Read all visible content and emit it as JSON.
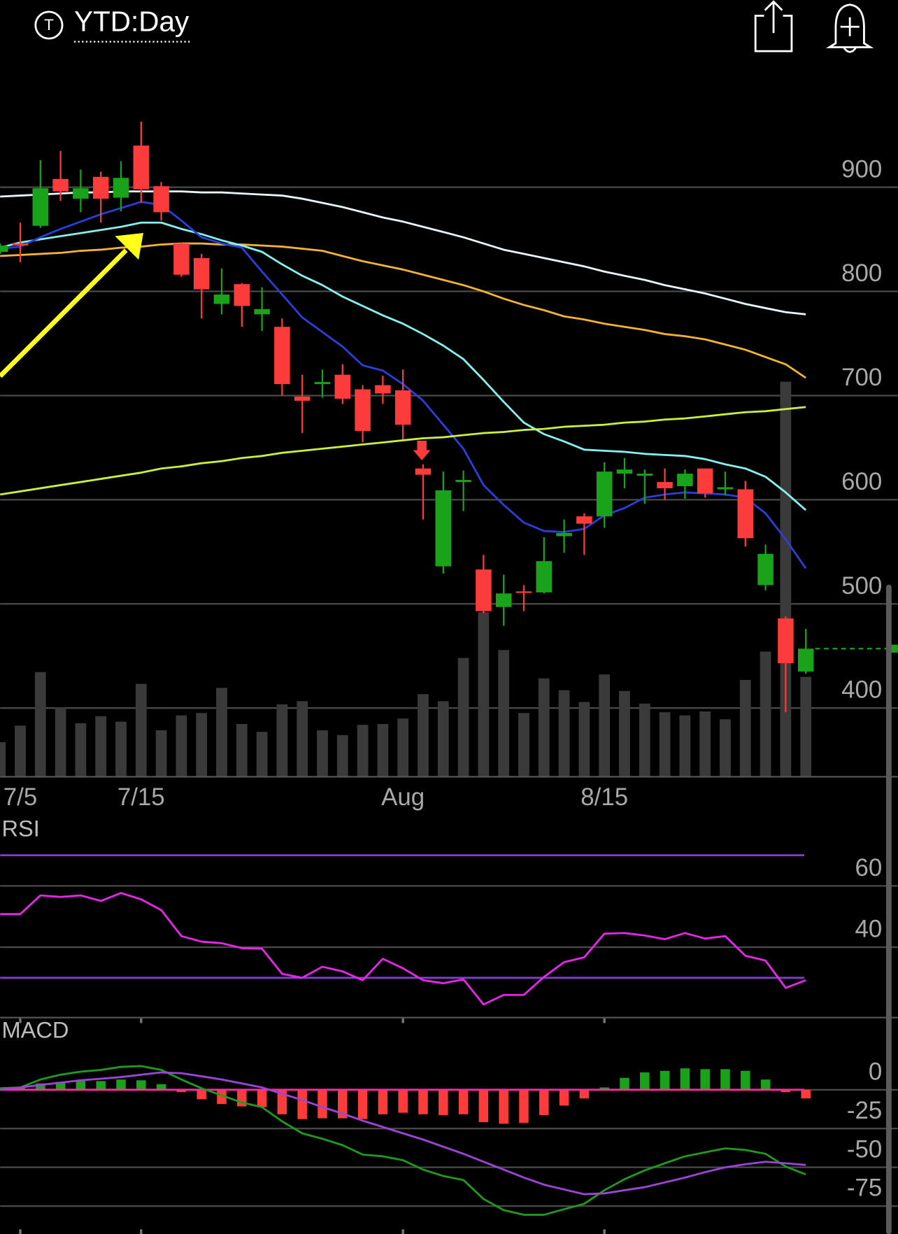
{
  "header": {
    "icon": "T",
    "title": "YTD:Day"
  },
  "chart_data": [
    {
      "type": "candlestick",
      "categories": [
        null,
        "7/5",
        null,
        null,
        null,
        null,
        null,
        "7/15",
        null,
        null,
        null,
        null,
        null,
        null,
        null,
        null,
        null,
        null,
        null,
        null,
        "Aug",
        null,
        null,
        null,
        null,
        null,
        null,
        null,
        null,
        null,
        "8/15",
        null,
        null,
        null,
        null,
        null,
        null,
        null,
        null,
        null,
        null
      ],
      "open": [
        838,
        846,
        863,
        908,
        889,
        910,
        890,
        940,
        901,
        846,
        832,
        788,
        807,
        778,
        766,
        699,
        711,
        720,
        706,
        710,
        705,
        630,
        536,
        617,
        533,
        497,
        512,
        511,
        565,
        584,
        584,
        625,
        623,
        617,
        613,
        630,
        610,
        610,
        518,
        486,
        435
      ],
      "high": [
        846,
        866,
        926,
        935,
        917,
        915,
        925,
        963,
        905,
        847,
        836,
        822,
        808,
        804,
        774,
        720,
        725,
        730,
        710,
        719,
        725,
        634,
        627,
        628,
        547,
        528,
        518,
        564,
        581,
        587,
        636,
        640,
        629,
        630,
        629,
        630,
        627,
        618,
        557,
        488,
        476
      ],
      "low": [
        836,
        828,
        861,
        887,
        876,
        866,
        877,
        885,
        868,
        814,
        774,
        778,
        766,
        762,
        700,
        664,
        698,
        692,
        655,
        692,
        658,
        581,
        529,
        589,
        491,
        479,
        493,
        510,
        549,
        547,
        573,
        611,
        596,
        600,
        601,
        602,
        604,
        555,
        513,
        396,
        433
      ],
      "close": [
        844,
        844,
        899,
        896,
        899,
        889,
        909,
        898,
        876,
        816,
        802,
        797,
        786,
        783,
        711,
        695,
        713,
        697,
        666,
        702,
        672,
        624,
        609,
        619,
        493,
        510,
        511,
        541,
        568,
        577,
        627,
        629,
        625,
        611,
        625,
        606,
        612,
        563,
        548,
        443,
        457
      ],
      "up_color": "#1aa21a",
      "down_color": "#fc3b3b",
      "volume": {
        "color": "#3a3a3a",
        "values": [
          44,
          65,
          133,
          88,
          68,
          77,
          70,
          118,
          59,
          78,
          81,
          113,
          67,
          57,
          92,
          96,
          59,
          53,
          66,
          67,
          74,
          105,
          96,
          151,
          209,
          161,
          81,
          125,
          110,
          95,
          130,
          109,
          93,
          82,
          78,
          83,
          73,
          123,
          159,
          502,
          127
        ]
      },
      "series": [
        {
          "color": "#e6f6fa",
          "values": [
            891,
            892,
            893,
            894,
            895,
            895,
            896,
            896,
            896,
            896,
            895,
            895,
            894,
            893,
            892,
            889,
            885,
            881,
            876,
            871,
            867,
            862,
            857,
            852,
            846,
            840,
            836,
            832,
            828,
            824,
            819,
            815,
            811,
            806,
            802,
            798,
            793,
            788,
            784,
            780,
            778
          ]
        },
        {
          "color": "#f5b335",
          "values": [
            834,
            835,
            836,
            837,
            839,
            840,
            842,
            843,
            845,
            846,
            846,
            845,
            845,
            844,
            843,
            841,
            839,
            834,
            829,
            825,
            821,
            816,
            811,
            806,
            800,
            793,
            787,
            782,
            776,
            773,
            769,
            766,
            763,
            759,
            757,
            754,
            749,
            744,
            737,
            730,
            717
          ]
        },
        {
          "color": "#86f0f0",
          "values": [
            842,
            847,
            850,
            853,
            856,
            859,
            862,
            866,
            866,
            860,
            855,
            849,
            844,
            838,
            826,
            815,
            806,
            795,
            786,
            777,
            769,
            759,
            748,
            735,
            715,
            694,
            674,
            663,
            656,
            648,
            647,
            646,
            644,
            643,
            642,
            639,
            634,
            630,
            622,
            607,
            590
          ]
        },
        {
          "color": "#2a3fd8",
          "values": [
            841,
            843,
            852,
            860,
            867,
            874,
            880,
            886,
            883,
            868,
            852,
            846,
            842,
            819,
            797,
            775,
            761,
            747,
            729,
            724,
            711,
            695,
            672,
            649,
            614,
            595,
            578,
            570,
            569,
            572,
            585,
            592,
            602,
            605,
            607,
            606,
            605,
            602,
            587,
            562,
            534
          ]
        },
        {
          "color": "#c8f03c",
          "values": [
            605,
            608,
            611,
            614,
            617,
            620,
            623,
            626,
            630,
            632,
            635,
            637,
            640,
            642,
            645,
            647,
            649,
            651,
            653,
            655,
            657,
            659,
            660,
            662,
            664,
            665,
            667,
            668,
            670,
            671,
            672,
            674,
            675,
            677,
            678,
            680,
            682,
            684,
            685,
            687,
            689
          ]
        }
      ],
      "ylim": [
        334,
        1008
      ],
      "yticks": [
        400,
        500,
        600,
        700,
        800,
        900
      ],
      "grid": true
    },
    {
      "type": "line",
      "title": "RSI",
      "series": [
        {
          "color": "#e826e8",
          "values": [
            50.8,
            50.8,
            56.9,
            56.4,
            56.9,
            55.1,
            57.7,
            55.6,
            52.1,
            43.6,
            41.8,
            41.3,
            39.7,
            39.5,
            31.3,
            30.0,
            33.6,
            32.1,
            29.2,
            36.2,
            33.1,
            29.2,
            28.2,
            29.5,
            21.3,
            24.4,
            24.4,
            30.3,
            35.1,
            36.7,
            44.4,
            44.6,
            43.8,
            42.6,
            44.6,
            42.8,
            43.6,
            37.2,
            35.6,
            26.7,
            29.2
          ]
        }
      ],
      "reference_lines": [
        30,
        70
      ],
      "reference_color": "#8a3ad8",
      "ylim": [
        17,
        81
      ],
      "yticks": [
        40,
        60
      ],
      "grid": true
    },
    {
      "type": "macd",
      "title": "MACD",
      "series": [
        {
          "color": "#1f9a1f",
          "values": [
            1.0,
            1.5,
            6.6,
            9.7,
            11.7,
            12.8,
            14.8,
            15.3,
            12.8,
            6.6,
            1.0,
            -3.6,
            -8.2,
            -11.2,
            -20.4,
            -28.1,
            -31.6,
            -35.7,
            -41.8,
            -42.9,
            -45.4,
            -51.5,
            -55.6,
            -58.2,
            -70.4,
            -77.6,
            -80.6,
            -80.6,
            -77.0,
            -73.5,
            -64.8,
            -57.7,
            -52.0,
            -47.4,
            -42.9,
            -40.3,
            -37.8,
            -38.8,
            -41.3,
            -49.5,
            -54.6
          ]
        },
        {
          "color": "#9b44d6",
          "values": [
            0,
            1.5,
            3.1,
            4.6,
            6.1,
            7.1,
            8.2,
            9.7,
            11.2,
            10.7,
            8.7,
            6.6,
            4.1,
            1.5,
            -2.6,
            -6.6,
            -11.2,
            -15.3,
            -19.9,
            -24.0,
            -28.1,
            -32.1,
            -36.7,
            -41.3,
            -46.4,
            -51.5,
            -56.6,
            -61.2,
            -64.3,
            -67.3,
            -66.8,
            -64.8,
            -62.8,
            -59.7,
            -56.6,
            -53.1,
            -50.0,
            -48.0,
            -46.4,
            -47.4,
            -48.5
          ]
        }
      ],
      "histogram": {
        "up_color": "#1aa21a",
        "down_color": "#fc3b3b",
        "values": [
          0.5,
          1.5,
          4.1,
          5.1,
          5.6,
          5.6,
          6.6,
          6.1,
          3.6,
          -1.5,
          -6.1,
          -9.2,
          -10.7,
          -11.2,
          -15.8,
          -18.9,
          -18.4,
          -18.4,
          -18.9,
          -15.8,
          -14.8,
          -15.8,
          -16.3,
          -15.8,
          -20.9,
          -21.9,
          -21.4,
          -16.3,
          -10.2,
          -5.6,
          1.5,
          7.7,
          11.2,
          12.2,
          13.8,
          13.3,
          13.3,
          12.2,
          6.6,
          -1.5,
          -5.6
        ]
      },
      "zero_color": "#ff2aa8",
      "ylim": [
        -93,
        43
      ],
      "yticks": [
        0,
        -25,
        -50,
        -75
      ],
      "grid": true
    }
  ]
}
